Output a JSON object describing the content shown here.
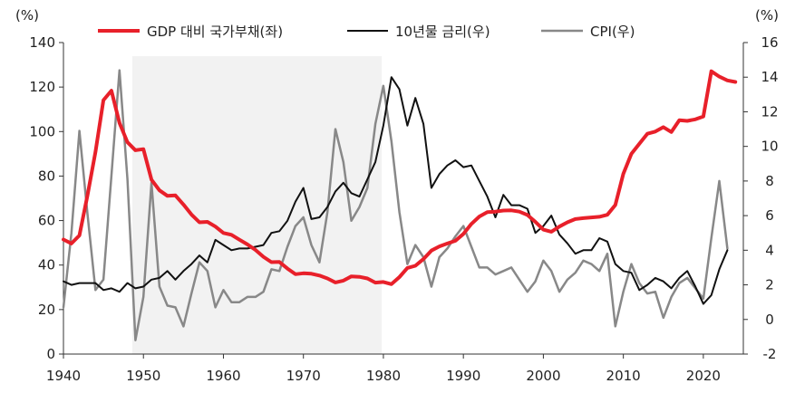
{
  "chart_data": {
    "type": "line",
    "title": "",
    "left_unit": "(%)",
    "right_unit": "(%)",
    "xlabel": "",
    "ylabel": "",
    "xlim": [
      1940,
      2025
    ],
    "ylim_left": [
      0,
      140
    ],
    "ylim_right": [
      -2,
      16
    ],
    "x_ticks": [
      1940,
      1950,
      1960,
      1970,
      1980,
      1990,
      2000,
      2010,
      2020
    ],
    "y_ticks_left": [
      0,
      20,
      40,
      60,
      80,
      100,
      120,
      140
    ],
    "y_ticks_right": [
      -2,
      0,
      2,
      4,
      6,
      8,
      10,
      12,
      14,
      16
    ],
    "grid": false,
    "legend_position": "top",
    "shaded_region": {
      "x_start": 1948.6,
      "x_end": 1979.8,
      "color": "#f2f2f2"
    },
    "series": [
      {
        "name": "GDP 대비 국가부채(좌)",
        "axis": "left",
        "color": "#e8202a",
        "points": [
          [
            1940,
            51.5
          ],
          [
            1941,
            49.7
          ],
          [
            1942,
            53.3
          ],
          [
            1943,
            71.3
          ],
          [
            1944,
            90.8
          ],
          [
            1945,
            114.1
          ],
          [
            1946,
            118.4
          ],
          [
            1947,
            103.9
          ],
          [
            1948,
            95.2
          ],
          [
            1949,
            91.6
          ],
          [
            1950,
            92.1
          ],
          [
            1951,
            78.4
          ],
          [
            1952,
            73.6
          ],
          [
            1953,
            71.1
          ],
          [
            1954,
            71.3
          ],
          [
            1955,
            67.2
          ],
          [
            1956,
            62.7
          ],
          [
            1957,
            59.2
          ],
          [
            1958,
            59.4
          ],
          [
            1959,
            57.3
          ],
          [
            1960,
            54.4
          ],
          [
            1961,
            53.6
          ],
          [
            1962,
            51.4
          ],
          [
            1963,
            49.3
          ],
          [
            1964,
            46.8
          ],
          [
            1965,
            43.7
          ],
          [
            1966,
            41.3
          ],
          [
            1967,
            41.4
          ],
          [
            1968,
            38.4
          ],
          [
            1969,
            35.9
          ],
          [
            1970,
            36.3
          ],
          [
            1971,
            36.1
          ],
          [
            1972,
            35.3
          ],
          [
            1973,
            34.0
          ],
          [
            1974,
            32.2
          ],
          [
            1975,
            33.0
          ],
          [
            1976,
            34.9
          ],
          [
            1977,
            34.7
          ],
          [
            1978,
            34.0
          ],
          [
            1979,
            32.1
          ],
          [
            1980,
            32.4
          ],
          [
            1981,
            31.4
          ],
          [
            1982,
            34.6
          ],
          [
            1983,
            38.7
          ],
          [
            1984,
            39.7
          ],
          [
            1985,
            42.7
          ],
          [
            1986,
            46.5
          ],
          [
            1987,
            48.4
          ],
          [
            1988,
            49.7
          ],
          [
            1989,
            50.9
          ],
          [
            1990,
            54.0
          ],
          [
            1991,
            58.5
          ],
          [
            1992,
            61.8
          ],
          [
            1993,
            63.8
          ],
          [
            1994,
            64.0
          ],
          [
            1995,
            64.5
          ],
          [
            1996,
            64.6
          ],
          [
            1997,
            64.0
          ],
          [
            1998,
            62.5
          ],
          [
            1999,
            59.4
          ],
          [
            2000,
            55.9
          ],
          [
            2001,
            55.0
          ],
          [
            2002,
            57.3
          ],
          [
            2003,
            59.2
          ],
          [
            2004,
            60.7
          ],
          [
            2005,
            61.1
          ],
          [
            2006,
            61.4
          ],
          [
            2007,
            61.7
          ],
          [
            2008,
            62.6
          ],
          [
            2009,
            67.0
          ],
          [
            2010,
            81.0
          ],
          [
            2011,
            90.0
          ],
          [
            2012,
            94.5
          ],
          [
            2013,
            99.0
          ],
          [
            2014,
            100.0
          ],
          [
            2015,
            102.0
          ],
          [
            2016,
            99.8
          ],
          [
            2017,
            105.1
          ],
          [
            2018,
            104.8
          ],
          [
            2019,
            105.5
          ],
          [
            2020,
            106.8
          ],
          [
            2021,
            127.1
          ],
          [
            2022,
            124.7
          ],
          [
            2023,
            123.0
          ],
          [
            2024,
            122.3
          ]
        ]
      },
      {
        "name": "10년물 금리(우)",
        "axis": "right",
        "color": "#111111",
        "points": [
          [
            1940,
            2.2
          ],
          [
            1941,
            2.0
          ],
          [
            1942,
            2.1
          ],
          [
            1943,
            2.1
          ],
          [
            1944,
            2.1
          ],
          [
            1945,
            1.7
          ],
          [
            1946,
            1.8
          ],
          [
            1947,
            1.6
          ],
          [
            1948,
            2.1
          ],
          [
            1949,
            1.8
          ],
          [
            1950,
            1.9
          ],
          [
            1951,
            2.3
          ],
          [
            1952,
            2.4
          ],
          [
            1953,
            2.8
          ],
          [
            1954,
            2.3
          ],
          [
            1955,
            2.8
          ],
          [
            1956,
            3.2
          ],
          [
            1957,
            3.7
          ],
          [
            1958,
            3.3
          ],
          [
            1959,
            4.6
          ],
          [
            1960,
            4.3
          ],
          [
            1961,
            4.0
          ],
          [
            1962,
            4.1
          ],
          [
            1963,
            4.1
          ],
          [
            1964,
            4.2
          ],
          [
            1965,
            4.3
          ],
          [
            1966,
            5.0
          ],
          [
            1967,
            5.1
          ],
          [
            1968,
            5.7
          ],
          [
            1969,
            6.8
          ],
          [
            1970,
            7.6
          ],
          [
            1971,
            5.8
          ],
          [
            1972,
            5.9
          ],
          [
            1973,
            6.5
          ],
          [
            1974,
            7.4
          ],
          [
            1975,
            7.9
          ],
          [
            1976,
            7.3
          ],
          [
            1977,
            7.1
          ],
          [
            1978,
            8.1
          ],
          [
            1979,
            9.1
          ],
          [
            1980,
            11.2
          ],
          [
            1981,
            14.0
          ],
          [
            1982,
            13.3
          ],
          [
            1983,
            11.2
          ],
          [
            1984,
            12.8
          ],
          [
            1985,
            11.3
          ],
          [
            1986,
            7.6
          ],
          [
            1987,
            8.4
          ],
          [
            1988,
            8.9
          ],
          [
            1989,
            9.2
          ],
          [
            1990,
            8.8
          ],
          [
            1991,
            8.9
          ],
          [
            1992,
            8.0
          ],
          [
            1993,
            7.1
          ],
          [
            1994,
            5.9
          ],
          [
            1995,
            7.2
          ],
          [
            1996,
            6.6
          ],
          [
            1997,
            6.6
          ],
          [
            1998,
            6.4
          ],
          [
            1999,
            5.0
          ],
          [
            2000,
            5.4
          ],
          [
            2001,
            6.0
          ],
          [
            2002,
            4.9
          ],
          [
            2003,
            4.4
          ],
          [
            2004,
            3.8
          ],
          [
            2005,
            4.0
          ],
          [
            2006,
            4.0
          ],
          [
            2007,
            4.7
          ],
          [
            2008,
            4.5
          ],
          [
            2009,
            3.2
          ],
          [
            2010,
            2.8
          ],
          [
            2011,
            2.7
          ],
          [
            2012,
            1.7
          ],
          [
            2013,
            2.0
          ],
          [
            2014,
            2.4
          ],
          [
            2015,
            2.2
          ],
          [
            2016,
            1.8
          ],
          [
            2017,
            2.4
          ],
          [
            2018,
            2.8
          ],
          [
            2019,
            1.9
          ],
          [
            2020,
            0.9
          ],
          [
            2021,
            1.4
          ],
          [
            2022,
            2.9
          ],
          [
            2023,
            4.0
          ]
        ]
      },
      {
        "name": "CPI(우)",
        "axis": "right",
        "color": "#888888",
        "points": [
          [
            1940,
            0.7
          ],
          [
            1941,
            5.0
          ],
          [
            1942,
            10.9
          ],
          [
            1943,
            6.1
          ],
          [
            1944,
            1.7
          ],
          [
            1945,
            2.3
          ],
          [
            1946,
            8.3
          ],
          [
            1947,
            14.4
          ],
          [
            1948,
            8.1
          ],
          [
            1949,
            -1.2
          ],
          [
            1950,
            1.3
          ],
          [
            1951,
            7.9
          ],
          [
            1952,
            1.9
          ],
          [
            1953,
            0.8
          ],
          [
            1954,
            0.7
          ],
          [
            1955,
            -0.4
          ],
          [
            1956,
            1.5
          ],
          [
            1957,
            3.3
          ],
          [
            1958,
            2.8
          ],
          [
            1959,
            0.7
          ],
          [
            1960,
            1.7
          ],
          [
            1961,
            1.0
          ],
          [
            1962,
            1.0
          ],
          [
            1963,
            1.3
          ],
          [
            1964,
            1.3
          ],
          [
            1965,
            1.6
          ],
          [
            1966,
            2.9
          ],
          [
            1967,
            2.8
          ],
          [
            1968,
            4.2
          ],
          [
            1969,
            5.4
          ],
          [
            1970,
            5.9
          ],
          [
            1971,
            4.3
          ],
          [
            1972,
            3.3
          ],
          [
            1973,
            6.2
          ],
          [
            1974,
            11.0
          ],
          [
            1975,
            9.1
          ],
          [
            1976,
            5.7
          ],
          [
            1977,
            6.5
          ],
          [
            1978,
            7.6
          ],
          [
            1979,
            11.3
          ],
          [
            1980,
            13.5
          ],
          [
            1981,
            10.3
          ],
          [
            1982,
            6.2
          ],
          [
            1983,
            3.2
          ],
          [
            1984,
            4.3
          ],
          [
            1985,
            3.6
          ],
          [
            1986,
            1.9
          ],
          [
            1987,
            3.6
          ],
          [
            1988,
            4.1
          ],
          [
            1989,
            4.8
          ],
          [
            1990,
            5.4
          ],
          [
            1991,
            4.2
          ],
          [
            1992,
            3.0
          ],
          [
            1993,
            3.0
          ],
          [
            1994,
            2.6
          ],
          [
            1995,
            2.8
          ],
          [
            1996,
            3.0
          ],
          [
            1997,
            2.3
          ],
          [
            1998,
            1.6
          ],
          [
            1999,
            2.2
          ],
          [
            2000,
            3.4
          ],
          [
            2001,
            2.8
          ],
          [
            2002,
            1.6
          ],
          [
            2003,
            2.3
          ],
          [
            2004,
            2.7
          ],
          [
            2005,
            3.4
          ],
          [
            2006,
            3.2
          ],
          [
            2007,
            2.8
          ],
          [
            2008,
            3.8
          ],
          [
            2009,
            -0.4
          ],
          [
            2010,
            1.6
          ],
          [
            2011,
            3.2
          ],
          [
            2012,
            2.1
          ],
          [
            2013,
            1.5
          ],
          [
            2014,
            1.6
          ],
          [
            2015,
            0.1
          ],
          [
            2016,
            1.3
          ],
          [
            2017,
            2.1
          ],
          [
            2018,
            2.4
          ],
          [
            2019,
            1.8
          ],
          [
            2020,
            1.2
          ],
          [
            2021,
            4.7
          ],
          [
            2022,
            8.0
          ],
          [
            2023,
            4.1
          ]
        ]
      }
    ]
  }
}
